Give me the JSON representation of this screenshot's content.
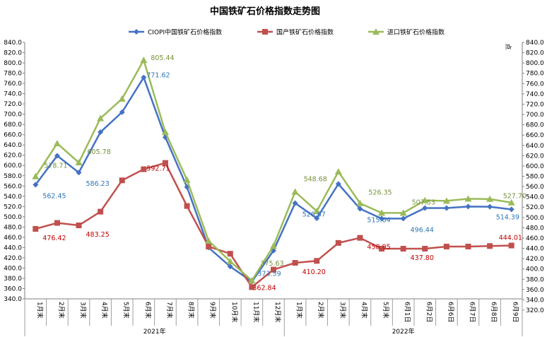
{
  "chart_data": {
    "type": "line",
    "title": "中国铁矿石价格指数走势图",
    "y2label": "点",
    "ylim": [
      340,
      840
    ],
    "y_ticks": [
      "840.0",
      "820.0",
      "800.0",
      "780.0",
      "760.0",
      "740.0",
      "720.0",
      "700.0",
      "680.0",
      "660.0",
      "640.0",
      "620.0",
      "600.0",
      "580.0",
      "560.0",
      "540.0",
      "520.0",
      "500.0",
      "480.0",
      "460.0",
      "440.0",
      "420.0",
      "400.0",
      "380.0",
      "360.0",
      "340.0"
    ],
    "y2_ticks": [
      "840.0",
      "820.0",
      "800.0",
      "780.0",
      "760.0",
      "740.0",
      "720.0",
      "700.0",
      "680.0",
      "660.0",
      "640.0",
      "620.0",
      "600.0",
      "580.0",
      "560.0",
      "540.0",
      "520.0",
      "500.0",
      "480.0",
      "460.0",
      "440.0",
      "420.0",
      "400.0",
      "380.0",
      "360.0",
      "340.0",
      "320.0"
    ],
    "categories": [
      "1月末",
      "2月末",
      "3月末",
      "4月末",
      "5月末",
      "6月末",
      "7月末",
      "8月末",
      "9月末",
      "10月末",
      "11月末",
      "12月末",
      "1月末",
      "2月末",
      "3月末",
      "4月末",
      "5月末",
      "6月1日",
      "6月2日",
      "6月6日",
      "6月7日",
      "6月8日",
      "6月9日"
    ],
    "groups": [
      {
        "label": "2021年",
        "start": 0,
        "end": 11
      },
      {
        "label": "2022年",
        "start": 12,
        "end": 22
      }
    ],
    "legend_position": "top",
    "grid": false,
    "series": [
      {
        "name": "CIOPI中国铁矿石价格指数",
        "color": "#4472C4",
        "marker": "diamond",
        "label_color": "#2E75B6",
        "values": [
          562.45,
          619,
          586.23,
          665,
          704,
          771.62,
          655,
          558,
          440,
          403,
          373.59,
          434,
          526.67,
          497,
          564,
          515.64,
          496.5,
          496.44,
          517,
          517,
          520,
          519.5,
          514.39
        ],
        "labels": {
          "0": "562.45",
          "2": "586.23",
          "5": "771.62",
          "10": "373.59",
          "12": "526.67",
          "15": "515.64",
          "17": "496.44",
          "22": "514.39"
        }
      },
      {
        "name": "国产铁矿石价格指数",
        "color": "#C0504D",
        "marker": "square",
        "label_color": "#C00000",
        "values": [
          476.42,
          488,
          483.25,
          510,
          571,
          592.71,
          605,
          521,
          442,
          428,
          362.84,
          397,
          410.2,
          414,
          449,
          458.95,
          437.8,
          437.8,
          437.8,
          442,
          442,
          443,
          444.01
        ],
        "labels": {
          "0": "476.42",
          "2": "483.25",
          "5": "592.71",
          "10": "362.84",
          "12": "410.20",
          "15": "458.95",
          "17": "437.80",
          "22": "444.01"
        }
      },
      {
        "name": "进口铁矿石价格指数",
        "color": "#9BBB59",
        "marker": "triangle",
        "label_color": "#76923C",
        "values": [
          578.71,
          643,
          605.78,
          692,
          730,
          805.44,
          665,
          572,
          453,
          413,
          375.63,
          443,
          548.68,
          511,
          588,
          526.35,
          507.53,
          507.53,
          532,
          531,
          535,
          534.5,
          527.7
        ],
        "labels": {
          "0": "578.71",
          "2": "605.78",
          "5": "805.44",
          "10": "375.63",
          "12": "548.68",
          "15": "526.35",
          "17": "507.53",
          "22": "527.70"
        }
      }
    ]
  }
}
